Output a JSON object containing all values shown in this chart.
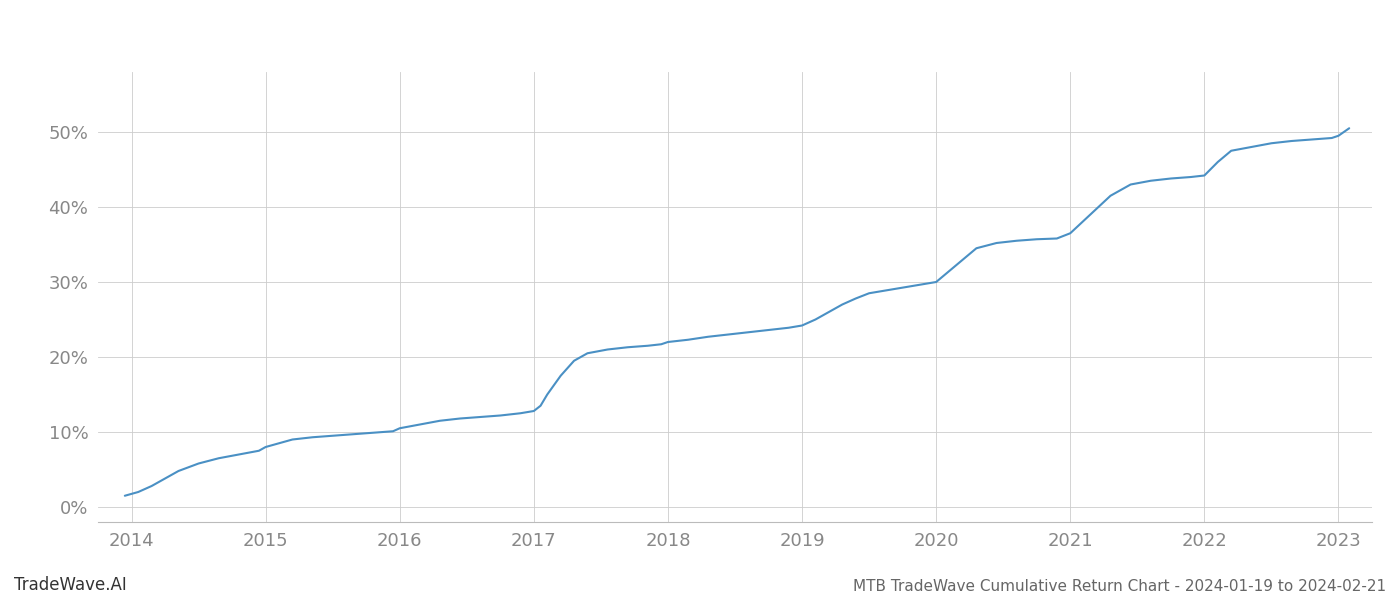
{
  "title": "MTB TradeWave Cumulative Return Chart - 2024-01-19 to 2024-02-21",
  "watermark": "TradeWave.AI",
  "line_color": "#4a90c4",
  "background_color": "#ffffff",
  "grid_color": "#cccccc",
  "x_years": [
    2014,
    2015,
    2016,
    2017,
    2018,
    2019,
    2020,
    2021,
    2022,
    2023
  ],
  "x_data": [
    2013.95,
    2014.05,
    2014.15,
    2014.25,
    2014.35,
    2014.5,
    2014.65,
    2014.8,
    2014.95,
    2015.0,
    2015.1,
    2015.2,
    2015.35,
    2015.5,
    2015.65,
    2015.8,
    2015.95,
    2016.0,
    2016.15,
    2016.3,
    2016.45,
    2016.6,
    2016.75,
    2016.9,
    2017.0,
    2017.05,
    2017.1,
    2017.2,
    2017.3,
    2017.4,
    2017.55,
    2017.7,
    2017.85,
    2017.95,
    2018.0,
    2018.15,
    2018.3,
    2018.45,
    2018.6,
    2018.75,
    2018.9,
    2019.0,
    2019.1,
    2019.2,
    2019.3,
    2019.4,
    2019.5,
    2019.6,
    2019.7,
    2019.8,
    2019.9,
    2020.0,
    2020.1,
    2020.2,
    2020.3,
    2020.45,
    2020.6,
    2020.75,
    2020.9,
    2021.0,
    2021.15,
    2021.3,
    2021.45,
    2021.6,
    2021.75,
    2021.9,
    2022.0,
    2022.1,
    2022.2,
    2022.35,
    2022.5,
    2022.65,
    2022.8,
    2022.95,
    2023.0,
    2023.08
  ],
  "y_data": [
    1.5,
    2.0,
    2.8,
    3.8,
    4.8,
    5.8,
    6.5,
    7.0,
    7.5,
    8.0,
    8.5,
    9.0,
    9.3,
    9.5,
    9.7,
    9.9,
    10.1,
    10.5,
    11.0,
    11.5,
    11.8,
    12.0,
    12.2,
    12.5,
    12.8,
    13.5,
    15.0,
    17.5,
    19.5,
    20.5,
    21.0,
    21.3,
    21.5,
    21.7,
    22.0,
    22.3,
    22.7,
    23.0,
    23.3,
    23.6,
    23.9,
    24.2,
    25.0,
    26.0,
    27.0,
    27.8,
    28.5,
    28.8,
    29.1,
    29.4,
    29.7,
    30.0,
    31.5,
    33.0,
    34.5,
    35.2,
    35.5,
    35.7,
    35.8,
    36.5,
    39.0,
    41.5,
    43.0,
    43.5,
    43.8,
    44.0,
    44.2,
    46.0,
    47.5,
    48.0,
    48.5,
    48.8,
    49.0,
    49.2,
    49.5,
    50.5
  ],
  "ylim": [
    -2,
    58
  ],
  "yticks": [
    0,
    10,
    20,
    30,
    40,
    50
  ],
  "xlim": [
    2013.75,
    2023.25
  ],
  "title_fontsize": 11,
  "tick_fontsize": 13,
  "watermark_fontsize": 12,
  "title_color": "#666666",
  "tick_color": "#888888",
  "watermark_color": "#333333"
}
